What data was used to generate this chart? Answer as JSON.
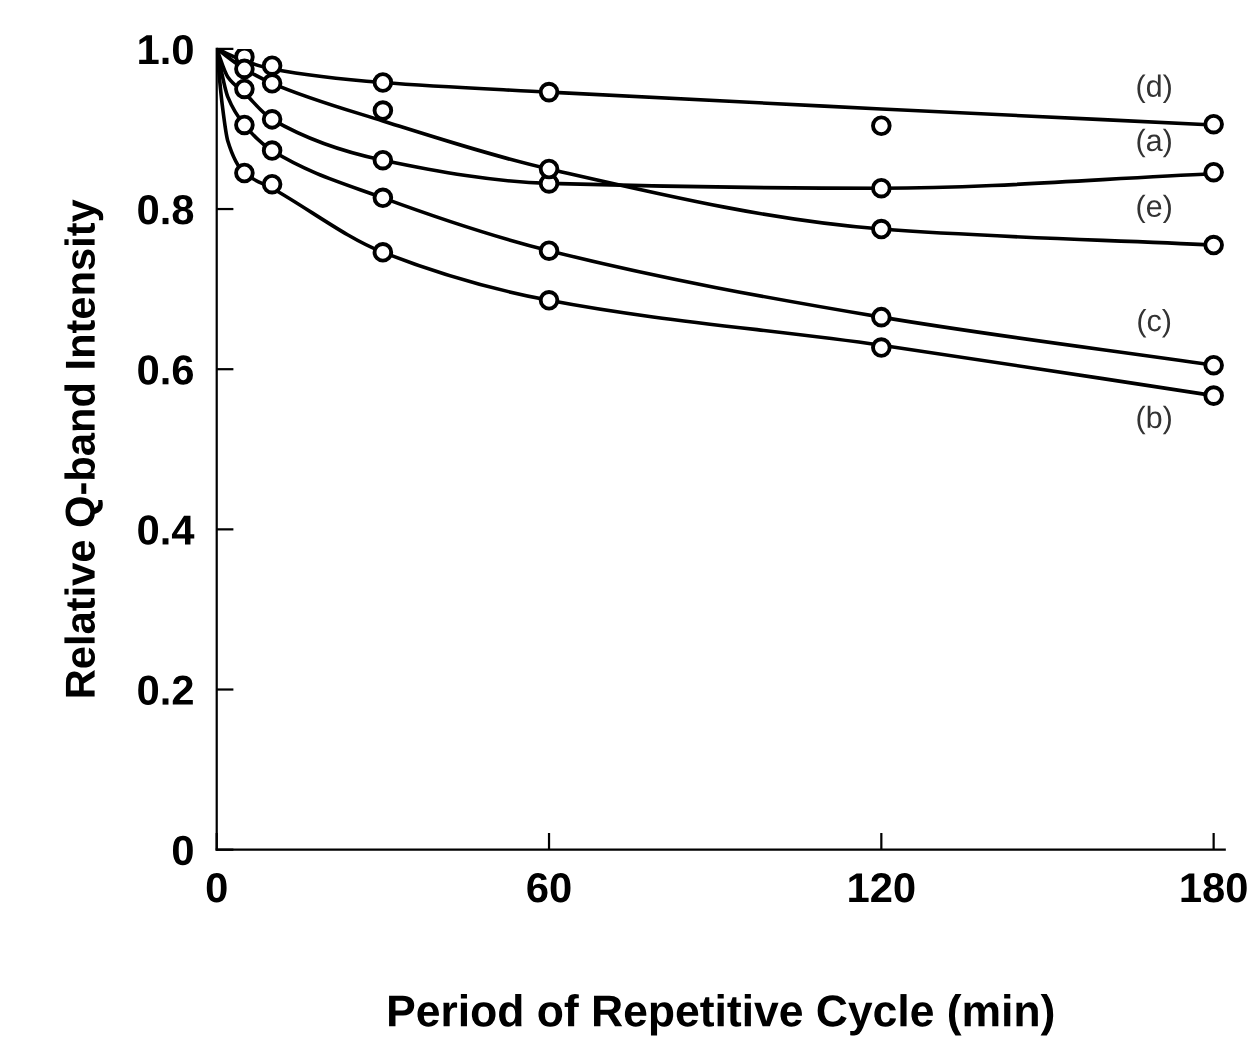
{
  "chart_data": {
    "type": "line",
    "xlabel": "Period of Repetitive Cycle (min)",
    "ylabel": "Relative Q-band Intensity",
    "xlim": [
      0,
      182
    ],
    "ylim": [
      0,
      1.0
    ],
    "xticks": [
      0,
      60,
      120,
      180
    ],
    "yticks": [
      0,
      0.2,
      0.4,
      0.6,
      0.8,
      {
        "value": 1,
        "label": "1.0"
      }
    ],
    "grid": false,
    "series": [
      {
        "type": "scatter",
        "color": "#000000",
        "marker": "circle",
        "x": [
          5,
          10,
          30,
          60,
          120,
          180
        ],
        "values": [
          0.99,
          0.979,
          0.958,
          0.946,
          0.904,
          0.906
        ]
      },
      {
        "type": "scatter",
        "color": "#000000",
        "marker": "circle",
        "x": [
          5,
          10,
          30,
          60,
          120,
          180
        ],
        "values": [
          0.95,
          0.912,
          0.861,
          0.832,
          0.826,
          0.846
        ]
      },
      {
        "type": "scatter",
        "color": "#000000",
        "marker": "circle",
        "x": [
          5,
          10,
          30,
          60,
          120,
          180
        ],
        "values": [
          0.975,
          0.957,
          0.923,
          0.85,
          0.775,
          0.755
        ]
      },
      {
        "type": "scatter",
        "color": "#000000",
        "marker": "circle",
        "x": [
          5,
          10,
          30,
          60,
          120,
          180
        ],
        "values": [
          0.905,
          0.873,
          0.814,
          0.748,
          0.665,
          0.605
        ]
      },
      {
        "type": "scatter",
        "color": "#000000",
        "marker": "circle",
        "x": [
          5,
          10,
          30,
          60,
          120,
          180
        ],
        "values": [
          0.845,
          0.831,
          0.746,
          0.686,
          0.627,
          0.567
        ]
      },
      {
        "color": "#000000",
        "marker": "none",
        "line_style": "solid",
        "x": [
          0,
          5,
          10,
          30,
          60,
          120,
          180
        ],
        "values": [
          1.0,
          0.985,
          0.975,
          0.958,
          0.946,
          0.925,
          0.905
        ]
      },
      {
        "color": "#000000",
        "marker": "none",
        "line_style": "solid",
        "x": [
          0,
          2,
          5,
          10,
          30,
          60,
          120,
          180
        ],
        "values": [
          1.0,
          0.965,
          0.945,
          0.912,
          0.861,
          0.832,
          0.826,
          0.844
        ]
      },
      {
        "color": "#000000",
        "marker": "none",
        "line_style": "solid",
        "x": [
          0,
          5,
          10,
          30,
          60,
          120,
          180
        ],
        "values": [
          1.0,
          0.975,
          0.957,
          0.91,
          0.85,
          0.775,
          0.755
        ]
      },
      {
        "color": "#000000",
        "marker": "none",
        "line_style": "solid",
        "x": [
          0,
          2,
          5,
          10,
          30,
          60,
          120,
          180
        ],
        "values": [
          1.0,
          0.94,
          0.905,
          0.873,
          0.814,
          0.748,
          0.665,
          0.605
        ]
      },
      {
        "color": "#000000",
        "marker": "none",
        "line_style": "solid",
        "x": [
          0,
          1,
          2,
          5,
          10,
          30,
          60,
          120,
          180
        ],
        "values": [
          1.0,
          0.93,
          0.885,
          0.845,
          0.826,
          0.746,
          0.686,
          0.63,
          0.567
        ]
      }
    ],
    "annotations": [
      "(d)",
      "(a)",
      "(e)",
      "(c)",
      "(b)"
    ]
  }
}
